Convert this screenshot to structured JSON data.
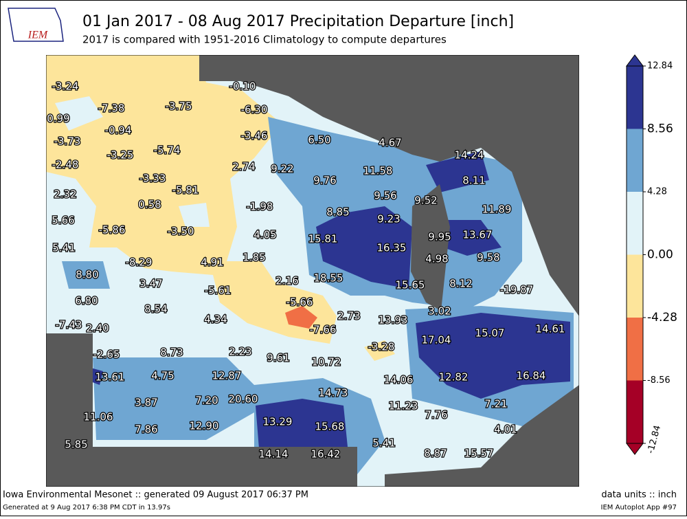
{
  "header": {
    "logo": "IEM",
    "title": "01 Jan 2017 - 08 Aug 2017 Precipitation Departure [inch]",
    "subtitle": "2017 is compared with 1951-2016 Climatology to compute departures"
  },
  "map": {
    "labels": [
      "-3.24",
      "-0.10",
      "-7.38",
      "-3.75",
      "-6.30",
      "0.99",
      "-0.94",
      "-3.46",
      "6.50",
      "4.67",
      "-3.73",
      "-3.25",
      "-5.74",
      "14.24",
      "-2.48",
      "2.74",
      "9.22",
      "11.58",
      "-3.33",
      "9.76",
      "8.11",
      "2.32",
      "-5.81",
      "9.56",
      "9.52",
      "0.58",
      "-1.98",
      "11.89",
      "8.85",
      "9.23",
      "5.66",
      "-5.86",
      "-3.50",
      "4.05",
      "9.95",
      "13.67",
      "15.81",
      "16.35",
      "5.41",
      "-8.29",
      "4.91",
      "1.85",
      "4.98",
      "9.58",
      "18.55",
      "8.80",
      "3.47",
      "2.16",
      "15.65",
      "8.12",
      "-19.87",
      "-5.61",
      "6.80",
      "8.54",
      "-5.66",
      "3.02",
      "13.93",
      "2.73",
      "4.34",
      "-7.66",
      "14.61",
      "-7.43",
      "2.40",
      "17.04",
      "15.07",
      "-3.28",
      "-2.65",
      "8.73",
      "2.23",
      "9.61",
      "10.72",
      "13.61",
      "4.75",
      "12.87",
      "14.06",
      "12.82",
      "16.84",
      "20.60",
      "14.73",
      "3.87",
      "7.20",
      "11.23",
      "7.21",
      "11.06",
      "7.86",
      "12.90",
      "13.29",
      "15.68",
      "7.76",
      "4.01",
      "5.85",
      "5.41",
      "14.14",
      "16.42",
      "8.87",
      "15.57"
    ]
  },
  "colorbar": {
    "ticks": [
      12.84,
      8.56,
      4.28,
      {
        "value": 0,
        "label": "0.00"
      },
      -4.28,
      -8.56,
      -12.84
    ],
    "colors": [
      "#2c3591",
      "#6fa6d2",
      "#e2f3f8",
      "#fde59b",
      "#f06f45",
      "#a50026"
    ]
  },
  "footer": {
    "left1": "Iowa Environmental Mesonet :: generated 09 August 2017 06:37 PM",
    "left2": "Generated at 9 Aug 2017 6:38 PM CDT in 13.97s",
    "right1": "data units :: inch",
    "right2": "IEM Autoplot App #97"
  }
}
